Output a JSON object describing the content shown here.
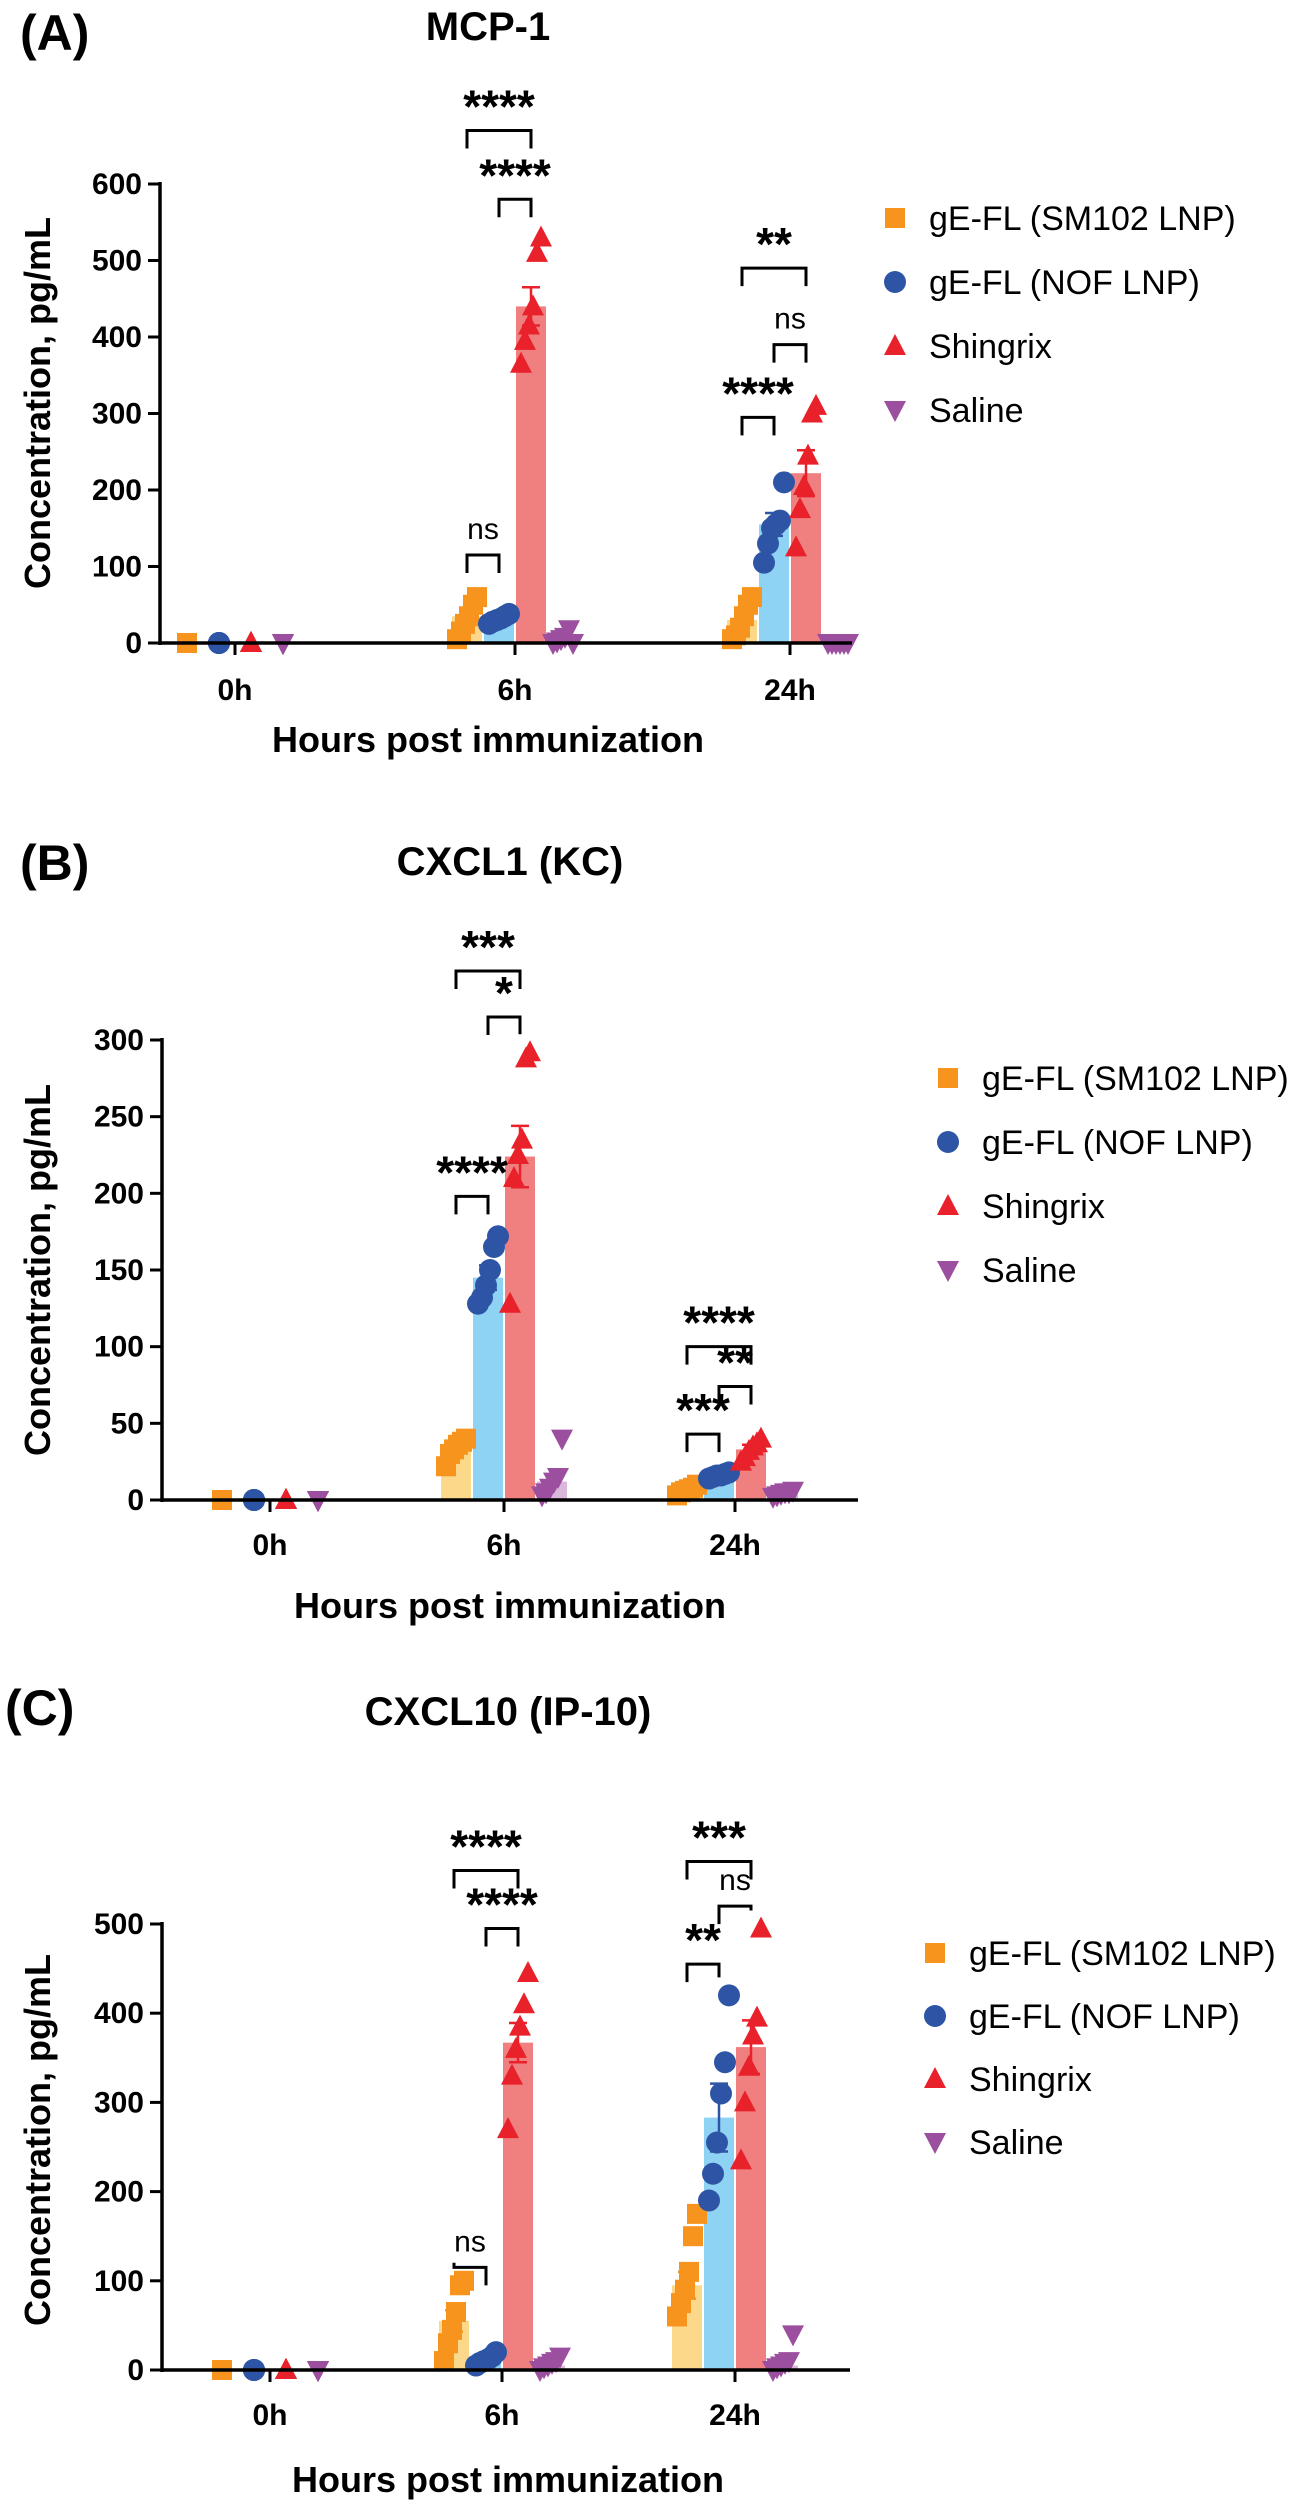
{
  "colors": {
    "gE-FL (SM102 LNP)": {
      "marker": "#F7941D",
      "bar": "#FBD88A"
    },
    "gE-FL (NOF LNP)": {
      "marker": "#2E55A5",
      "bar": "#8FD3F4"
    },
    "Shingrix": {
      "marker": "#E8212A",
      "bar": "#F08080"
    },
    "Saline": {
      "marker": "#9B4F9E",
      "bar": "#D9B8DB"
    }
  },
  "chart_data": [
    {
      "type": "bar",
      "panel": "(A)",
      "title": "MCP-1",
      "xlabel": "Hours post immunization",
      "ylabel": "Concentration, pg/mL",
      "ylim": [
        0,
        600
      ],
      "yticks": [
        0,
        100,
        200,
        300,
        400,
        500,
        600
      ],
      "categories": [
        "0h",
        "6h",
        "24h"
      ],
      "legend": [
        "gE-FL (SM102 LNP)",
        "gE-FL (NOF LNP)",
        "Shingrix",
        "Saline"
      ],
      "series": [
        {
          "name": "gE-FL (SM102 LNP)",
          "marker": "square",
          "values": [
            0,
            35,
            30
          ],
          "errors": [
            0,
            0,
            0
          ],
          "points": [
            [
              0,
              0,
              0,
              0,
              0,
              0
            ],
            [
              5,
              15,
              25,
              35,
              50,
              60
            ],
            [
              5,
              10,
              20,
              35,
              50,
              60
            ]
          ]
        },
        {
          "name": "gE-FL (NOF LNP)",
          "marker": "circle",
          "values": [
            0,
            30,
            155
          ],
          "errors": [
            0,
            0,
            15
          ],
          "points": [
            [
              0,
              0,
              0,
              0,
              0,
              0
            ],
            [
              25,
              28,
              30,
              32,
              35,
              38
            ],
            [
              105,
              130,
              150,
              155,
              160,
              210
            ]
          ]
        },
        {
          "name": "Shingrix",
          "marker": "triangle-up",
          "values": [
            0,
            440,
            222
          ],
          "errors": [
            0,
            25,
            30
          ],
          "points": [
            [
              0,
              0,
              0,
              0,
              0,
              0
            ],
            [
              365,
              395,
              415,
              440,
              510,
              530
            ],
            [
              125,
              175,
              205,
              245,
              300,
              310
            ]
          ]
        },
        {
          "name": "Saline",
          "marker": "triangle-down",
          "values": [
            0,
            5,
            0
          ],
          "errors": [
            0,
            0,
            0
          ],
          "points": [
            [
              0,
              0,
              0,
              0,
              0,
              0
            ],
            [
              0,
              2,
              5,
              8,
              18,
              0
            ],
            [
              0,
              0,
              0,
              0,
              0,
              0
            ]
          ]
        }
      ],
      "significance": [
        {
          "label": "****",
          "category": 1,
          "from": 0,
          "to": 2,
          "y": 670
        },
        {
          "label": "****",
          "category": 1,
          "from": 1,
          "to": 2,
          "y": 580
        },
        {
          "label": "ns",
          "category": 1,
          "from": 0,
          "to": 1,
          "y": 115
        },
        {
          "label": "**",
          "category": 2,
          "from": 0,
          "to": 2,
          "y": 490
        },
        {
          "label": "ns",
          "category": 2,
          "from": 1,
          "to": 2,
          "y": 390
        },
        {
          "label": "****",
          "category": 2,
          "from": 0,
          "to": 1,
          "y": 295
        }
      ]
    },
    {
      "type": "bar",
      "panel": "(B)",
      "title": "CXCL1 (KC)",
      "xlabel": "Hours post immunization",
      "ylabel": "Concentration, pg/mL",
      "ylim": [
        0,
        300
      ],
      "yticks": [
        0,
        50,
        100,
        150,
        200,
        250,
        300
      ],
      "categories": [
        "0h",
        "6h",
        "24h"
      ],
      "legend": [
        "gE-FL (SM102 LNP)",
        "gE-FL (NOF LNP)",
        "Shingrix",
        "Saline"
      ],
      "series": [
        {
          "name": "gE-FL (SM102 LNP)",
          "marker": "square",
          "values": [
            0,
            35,
            7
          ],
          "errors": [
            0,
            3,
            1
          ],
          "points": [
            [
              0,
              0,
              0,
              0,
              0,
              0
            ],
            [
              22,
              30,
              33,
              36,
              38,
              40
            ],
            [
              3,
              5,
              6,
              7,
              8,
              10
            ]
          ]
        },
        {
          "name": "gE-FL (NOF LNP)",
          "marker": "circle",
          "values": [
            0,
            145,
            16
          ],
          "errors": [
            0,
            8,
            1
          ],
          "points": [
            [
              0,
              0,
              0,
              0,
              0,
              0
            ],
            [
              128,
              132,
              140,
              150,
              165,
              172
            ],
            [
              14,
              15,
              16,
              16,
              17,
              18
            ]
          ]
        },
        {
          "name": "Shingrix",
          "marker": "triangle-up",
          "values": [
            0,
            224,
            33
          ],
          "errors": [
            0,
            20,
            3
          ],
          "points": [
            [
              0,
              0,
              0,
              0,
              0,
              0
            ],
            [
              128,
              210,
              225,
              235,
              288,
              292
            ],
            [
              25,
              28,
              32,
              35,
              37,
              40
            ]
          ]
        },
        {
          "name": "Saline",
          "marker": "triangle-down",
          "values": [
            0,
            12,
            4
          ],
          "errors": [
            0,
            0,
            0
          ],
          "points": [
            [
              0,
              0,
              0,
              0,
              0,
              0
            ],
            [
              3,
              5,
              8,
              12,
              15,
              40
            ],
            [
              2,
              3,
              4,
              5,
              5,
              6
            ]
          ]
        }
      ],
      "significance": [
        {
          "label": "***",
          "category": 1,
          "from": 0,
          "to": 2,
          "y": 345
        },
        {
          "label": "*",
          "category": 1,
          "from": 1,
          "to": 2,
          "y": 315
        },
        {
          "label": "****",
          "category": 1,
          "from": 0,
          "to": 1,
          "y": 198
        },
        {
          "label": "****",
          "category": 2,
          "from": 0,
          "to": 2,
          "y": 100
        },
        {
          "label": "**",
          "category": 2,
          "from": 1,
          "to": 2,
          "y": 74
        },
        {
          "label": "***",
          "category": 2,
          "from": 0,
          "to": 1,
          "y": 43
        }
      ]
    },
    {
      "type": "bar",
      "panel": "(C)",
      "title": "CXCL10 (IP-10)",
      "xlabel": "Hours post immunization",
      "ylabel": "Concentration, pg/mL",
      "ylim": [
        0,
        500
      ],
      "yticks": [
        0,
        100,
        200,
        300,
        400,
        500
      ],
      "categories": [
        "0h",
        "6h",
        "24h"
      ],
      "legend": [
        "gE-FL (SM102 LNP)",
        "gE-FL (NOF LNP)",
        "Shingrix",
        "Saline"
      ],
      "series": [
        {
          "name": "gE-FL (SM102 LNP)",
          "marker": "square",
          "values": [
            0,
            55,
            95
          ],
          "errors": [
            0,
            12,
            15
          ],
          "points": [
            [
              0,
              0,
              0,
              0,
              0,
              0
            ],
            [
              10,
              30,
              45,
              65,
              95,
              100
            ],
            [
              60,
              75,
              90,
              110,
              150,
              175
            ]
          ]
        },
        {
          "name": "gE-FL (NOF LNP)",
          "marker": "circle",
          "values": [
            0,
            12,
            283
          ],
          "errors": [
            0,
            2,
            38
          ],
          "points": [
            [
              0,
              0,
              0,
              0,
              0,
              0
            ],
            [
              5,
              8,
              10,
              12,
              15,
              20
            ],
            [
              190,
              220,
              255,
              310,
              345,
              420
            ]
          ]
        },
        {
          "name": "Shingrix",
          "marker": "triangle-up",
          "values": [
            0,
            367,
            362
          ],
          "errors": [
            0,
            22,
            30
          ],
          "points": [
            [
              0,
              0,
              0,
              0,
              0,
              0
            ],
            [
              270,
              330,
              360,
              385,
              410,
              445
            ],
            [
              235,
              300,
              340,
              375,
              395,
              495
            ]
          ]
        },
        {
          "name": "Saline",
          "marker": "triangle-down",
          "values": [
            0,
            5,
            5
          ],
          "errors": [
            0,
            0,
            0
          ],
          "points": [
            [
              0,
              0,
              0,
              0,
              0,
              0
            ],
            [
              0,
              3,
              5,
              8,
              10,
              15
            ],
            [
              0,
              3,
              5,
              8,
              10,
              40
            ]
          ]
        }
      ],
      "significance": [
        {
          "label": "****",
          "category": 1,
          "from": 0,
          "to": 2,
          "y": 560
        },
        {
          "label": "****",
          "category": 1,
          "from": 1,
          "to": 2,
          "y": 495
        },
        {
          "label": "ns",
          "category": 1,
          "from": 0,
          "to": 1,
          "y": 115
        },
        {
          "label": "***",
          "category": 2,
          "from": 0,
          "to": 2,
          "y": 570
        },
        {
          "label": "ns",
          "category": 2,
          "from": 1,
          "to": 2,
          "y": 520
        },
        {
          "label": "**",
          "category": 2,
          "from": 0,
          "to": 1,
          "y": 455
        }
      ]
    }
  ]
}
